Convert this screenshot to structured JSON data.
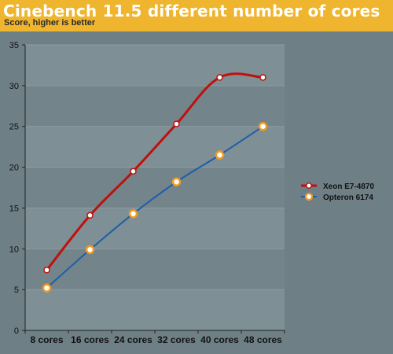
{
  "header": {
    "title": "Cinebench 11.5 different number of cores",
    "subtitle": "Score, higher is better"
  },
  "colors": {
    "header_bg": "#f0b52e",
    "page_bg": "#6f7f86",
    "plot_band_light": "#7e8f95",
    "plot_band_dark": "#73848b",
    "xeon": "#c0100d",
    "opteron": "#1f5ea8"
  },
  "chart_data": {
    "type": "line",
    "title": "Cinebench 11.5 different number of cores",
    "subtitle": "Score, higher is better",
    "categories": [
      "8 cores",
      "16 cores",
      "24 cores",
      "32 cores",
      "40 cores",
      "48 cores"
    ],
    "ylim": [
      0,
      35
    ],
    "yticks": [
      "0",
      "5",
      "10",
      "15",
      "20",
      "25",
      "30",
      "35"
    ],
    "grid": true,
    "legend_position": "right",
    "series": [
      {
        "name": "Xeon E7-4870",
        "values": [
          7.4,
          14.1,
          19.5,
          25.3,
          31.0,
          31.0
        ],
        "color": "#c0100d",
        "marker": "white-circle"
      },
      {
        "name": "Opteron 6174",
        "values": [
          5.2,
          9.9,
          14.3,
          18.2,
          21.5,
          25.0
        ],
        "color": "#1f5ea8",
        "marker": "orange-circle"
      }
    ]
  }
}
